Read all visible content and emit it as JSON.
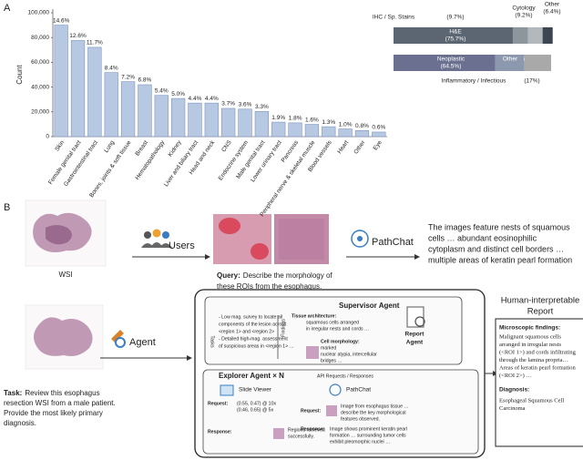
{
  "panel_labels": [
    "A",
    "B"
  ],
  "chart_data": [
    {
      "type": "bar",
      "y_label": "Count",
      "categories": [
        "Skin",
        "Female genital tract",
        "Gastrointestinal tract",
        "Lung",
        "Bones, joints & soft tissue",
        "Breast",
        "Hematopathology",
        "Kidney",
        "Liver and biliary tract",
        "Head and neck",
        "CNS",
        "Endocrine system",
        "Male genital tract",
        "Lower urinary tract",
        "Pancreas",
        "Peripheral nerve & skeletal muscle",
        "Blood vessels",
        "Heart",
        "Other",
        "Eye"
      ],
      "values": [
        90000,
        77600,
        72100,
        51700,
        44400,
        41900,
        33300,
        30800,
        27100,
        27100,
        22800,
        22200,
        20300,
        11700,
        11100,
        9900,
        8000,
        6200,
        4900,
        3700
      ],
      "share_labels": [
        "14.6%",
        "12.6%",
        "11.7%",
        "8.4%",
        "7.2%",
        "6.8%",
        "5.4%",
        "5.0%",
        "4.4%",
        "4.4%",
        "3.7%",
        "3.6%",
        "3.3%",
        "1.9%",
        "1.8%",
        "1.6%",
        "1.3%",
        "1.0%",
        "0.8%",
        "0.6%"
      ],
      "color": "#b7c8e3",
      "edge_color": "#7d95bf",
      "ylim": [
        0,
        100000
      ],
      "yticks": [
        0,
        {
          "value": 20000,
          "label": "20,000"
        },
        {
          "value": 40000,
          "label": "40,000"
        },
        {
          "value": 60000,
          "label": "60,000"
        },
        {
          "value": 80000,
          "label": "80,000"
        },
        {
          "value": 100000,
          "label": "100,000"
        }
      ]
    },
    {
      "type": "stacked_hbar",
      "xlim": [
        0,
        100
      ],
      "bars": [
        {
          "segments": [
            {
              "name": "H&E",
              "value": 75.7,
              "label": "(75.7%)",
              "color": "#5c6672"
            },
            {
              "name": "IHC / Sp. Stains",
              "value": 9.7,
              "label": "(9.7%)",
              "color": "#8d959d"
            },
            {
              "name": "Cytology",
              "value": 9.2,
              "label": "(9.2%)",
              "color": "#b3b8bd"
            },
            {
              "name": "Other",
              "value": 6.4,
              "label": "(6.4%)",
              "color": "#3d4550"
            }
          ]
        },
        {
          "segments": [
            {
              "name": "Neoplastic",
              "value": 64.5,
              "label": "(64.5%)",
              "color": "#6c7090"
            },
            {
              "name": "Other",
              "value": 18.5,
              "label": "(18.5%)",
              "color": "#8c98ae"
            },
            {
              "name": "Inflammatory / Infectious",
              "value": 17,
              "label": "(17%)",
              "color": "#a9a9a9"
            }
          ]
        }
      ]
    }
  ],
  "top_row": {
    "wsi_label": "WSI",
    "users": "Users",
    "pathchat": "PathChat",
    "query_lead": "Query:",
    "query": [
      "Describe the morphology of",
      "these ROIs from the esophagus."
    ],
    "response": [
      "The images feature nests of squamous",
      "cells … abundant eosinophilic",
      "cytoplasm and distinct cell borders …",
      "multiple areas of keratin pearl formation"
    ]
  },
  "bottom_row": {
    "agent": "Agent",
    "task_lead": "Task:",
    "task": [
      "Review this esophagus",
      "resection WSI from a male patient.",
      "Provide the most likely primary",
      "diagnosis."
    ],
    "supervisor": {
      "title": "Supervisor Agent",
      "tasks_label": "Tasks",
      "findings_label": "Findings",
      "tasks": [
        "- Low mag. survey to locate all",
        "components of the lesion across",
        "<region 1> and <region 2>",
        "- Detailed high-mag. assessment",
        "of suspicious areas in <region 1> …"
      ],
      "findings_head_1": "Tissue architecture:",
      "findings_1": [
        "squamous cells arranged",
        "in irregular nests and cords …"
      ],
      "findings_head_2": "Cell morphology:",
      "findings_2": [
        "marked",
        "nuclear atypia, intercellular",
        "bridges …"
      ],
      "report_agent": [
        "Report",
        "Agent"
      ]
    },
    "explorer": {
      "title": "Explorer Agent × N",
      "api": "API Requests / Responses",
      "slide_viewer": "Slide Viewer",
      "pathchat": "PathChat",
      "request_label": "Request:",
      "response_label": "Response:",
      "sv_request": [
        "(0.55, 0.47) @ 10x",
        "(0.46, 0.65) @ 5x"
      ],
      "sv_response": [
        "Regions retrieved",
        "successfully."
      ],
      "pc_request": [
        "Image from esophagus tissue …",
        "describe the key morphological",
        "features observed."
      ],
      "pc_response": [
        "Image shows prominent keratin pearl",
        "formation … surrounding tumor cells",
        "exhibit pleomorphic nuclei …"
      ]
    }
  },
  "report": {
    "title": [
      "Human-interpretable",
      "Report"
    ],
    "findings_head": "Microscopic findings:",
    "findings": [
      "Malignant squamous cells",
      "arranged in irregular nests",
      "(<ROI 1>) and cords infiltrating",
      "through the lamina propria…",
      "Areas of keratin pearl formation",
      "(<ROI 2>) …"
    ],
    "diagnosis_head": "Diagnosis:",
    "diagnosis": [
      "Esophageal Squamous Cell",
      "Carcinoma"
    ]
  }
}
